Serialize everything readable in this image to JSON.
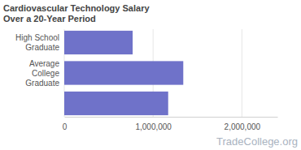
{
  "chart_data": {
    "type": "bar",
    "orientation": "horizontal",
    "title": "Cardiovascular Technology Salary Over a 20-Year Period",
    "categories": [
      "High School Graduate",
      "Average College Graduate",
      null
    ],
    "values": [
      770000,
      1340000,
      1170000
    ],
    "color": "#6f72c9",
    "xlim": [
      0,
      2400000
    ],
    "xticks": [
      0,
      {
        "value": 1000000,
        "label": "1,000,000"
      },
      {
        "value": 2000000,
        "label": "2,000,000"
      }
    ],
    "grid": true,
    "annotation": "TradeCollege.org"
  }
}
